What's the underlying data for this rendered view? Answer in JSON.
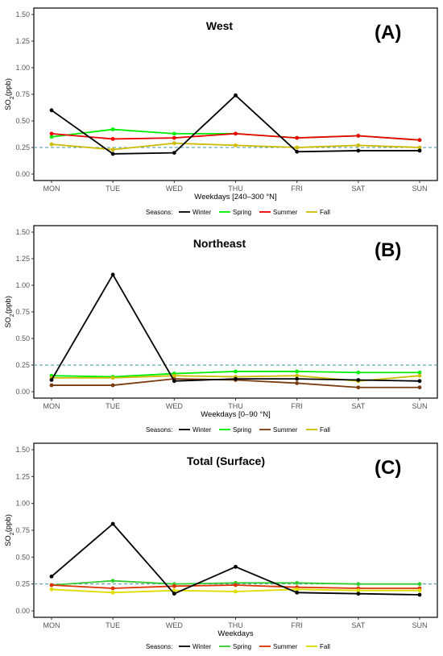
{
  "chart_data": [
    {
      "type": "line",
      "panel_label": "(A)",
      "title": "West",
      "xlabel": "Weekdays [240–300 °N]",
      "ylabel": {
        "main": "SO",
        "sub": "2",
        "rest": "(ppb)"
      },
      "categories": [
        "MON",
        "TUE",
        "WED",
        "THU",
        "FRI",
        "SAT",
        "SUN"
      ],
      "ylim": [
        0,
        1.5
      ],
      "yticks": [
        "0.00",
        "0.25",
        "0.50",
        "0.75",
        "1.00",
        "1.25",
        "1.50"
      ],
      "reference_line": 0.25,
      "grid": false,
      "legend_placement": "bottom",
      "legend_title": "Seasons:",
      "series": [
        {
          "name": "Winter",
          "color": "#000000",
          "values": [
            0.6,
            0.19,
            0.2,
            0.74,
            0.21,
            0.22,
            0.22
          ]
        },
        {
          "name": "Spring",
          "color": "#00ee00",
          "values": [
            0.35,
            0.42,
            0.38,
            0.38,
            0.34,
            0.36,
            0.32
          ]
        },
        {
          "name": "Summer",
          "color": "#ee0000",
          "values": [
            0.38,
            0.33,
            0.34,
            0.38,
            0.34,
            0.36,
            0.32
          ]
        },
        {
          "name": "Fall",
          "color": "#ccbb00",
          "values": [
            0.28,
            0.23,
            0.29,
            0.27,
            0.25,
            0.27,
            0.25
          ]
        }
      ]
    },
    {
      "type": "line",
      "panel_label": "(B)",
      "title": "Northeast",
      "xlabel": "Weekdays [0–90 °N]",
      "ylabel": {
        "main": "SO",
        "sub": "2",
        "rest": "(ppb)"
      },
      "categories": [
        "MON",
        "TUE",
        "WED",
        "THU",
        "FRI",
        "SAT",
        "SUN"
      ],
      "ylim": [
        0,
        1.5
      ],
      "yticks": [
        "0.00",
        "0.25",
        "0.50",
        "0.75",
        "1.00",
        "1.25",
        "1.50"
      ],
      "reference_line": 0.25,
      "grid": false,
      "legend_placement": "bottom",
      "legend_title": "Seasons:",
      "series": [
        {
          "name": "Winter",
          "color": "#000000",
          "values": [
            0.11,
            1.1,
            0.1,
            0.12,
            0.12,
            0.11,
            0.1
          ]
        },
        {
          "name": "Spring",
          "color": "#00ee00",
          "values": [
            0.15,
            0.14,
            0.17,
            0.19,
            0.19,
            0.18,
            0.18
          ]
        },
        {
          "name": "Summer",
          "color": "#7a3b10",
          "values": [
            0.06,
            0.06,
            0.12,
            0.11,
            0.08,
            0.04,
            0.04
          ]
        },
        {
          "name": "Fall",
          "color": "#ccbb00",
          "values": [
            0.13,
            0.13,
            0.15,
            0.14,
            0.15,
            0.1,
            0.15
          ]
        }
      ]
    },
    {
      "type": "line",
      "panel_label": "(C)",
      "title": "Total (Surface)",
      "xlabel": "Weekdays",
      "ylabel": {
        "main": "SO",
        "sub": "2",
        "rest": "(ppb)"
      },
      "categories": [
        "MON",
        "TUE",
        "WED",
        "THU",
        "FRI",
        "SAT",
        "SUN"
      ],
      "ylim": [
        0,
        1.5
      ],
      "yticks": [
        "0.00",
        "0.25",
        "0.50",
        "0.75",
        "1.00",
        "1.25",
        "1.50"
      ],
      "reference_line": 0.25,
      "grid": false,
      "legend_placement": "bottom",
      "legend_title": "Seasons:",
      "series": [
        {
          "name": "Winter",
          "color": "#000000",
          "values": [
            0.32,
            0.81,
            0.16,
            0.41,
            0.17,
            0.16,
            0.15
          ]
        },
        {
          "name": "Spring",
          "color": "#33cc33",
          "values": [
            0.24,
            0.28,
            0.25,
            0.26,
            0.26,
            0.25,
            0.25
          ]
        },
        {
          "name": "Summer",
          "color": "#dd3300",
          "values": [
            0.24,
            0.21,
            0.23,
            0.24,
            0.22,
            0.21,
            0.21
          ]
        },
        {
          "name": "Fall",
          "color": "#dddd00",
          "values": [
            0.2,
            0.17,
            0.19,
            0.18,
            0.2,
            0.19,
            0.19
          ]
        }
      ]
    }
  ]
}
